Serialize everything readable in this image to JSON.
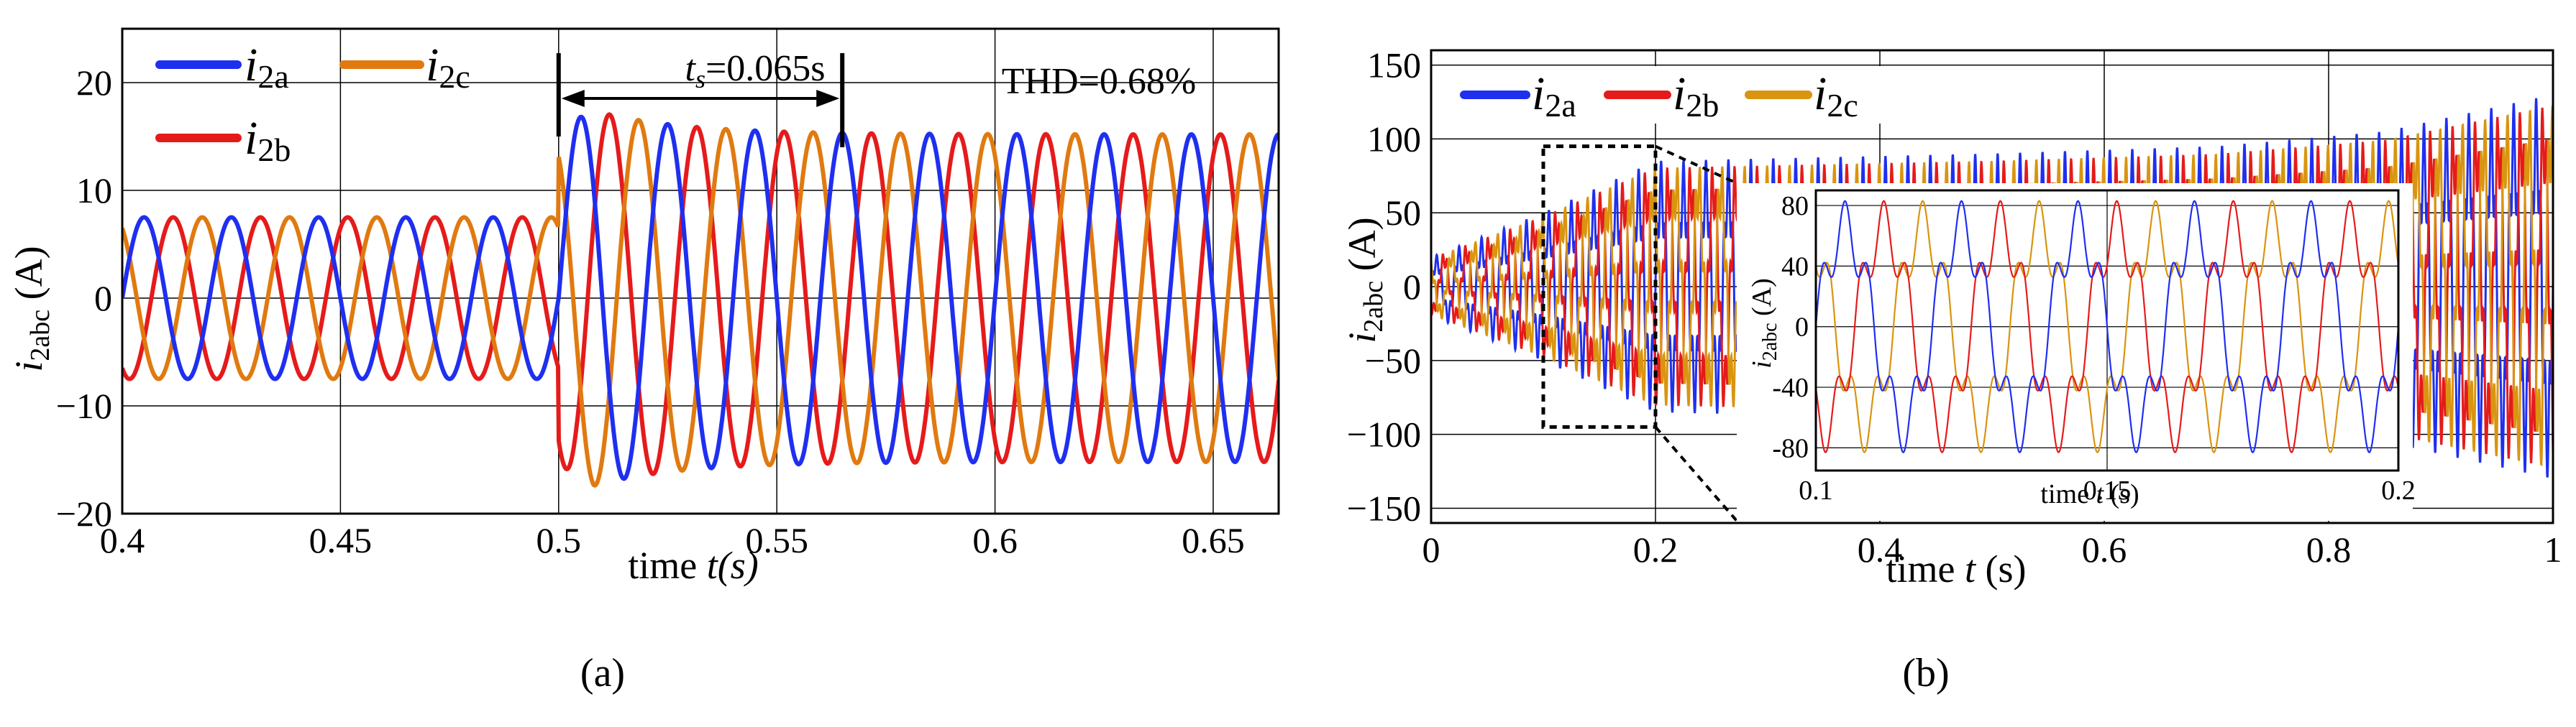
{
  "chart_data": [
    {
      "type": "line",
      "panel_label": "(a)",
      "xlabel": {
        "prefix": "time ",
        "var": "t",
        "unit": "(s)"
      },
      "ylabel": {
        "var": "i",
        "sub": "2abc",
        "unit": " (A)"
      },
      "xlim": [
        0.4,
        0.665
      ],
      "ylim": [
        -20,
        25
      ],
      "xticks": [
        0.4,
        0.45,
        0.5,
        0.55,
        0.6,
        0.65
      ],
      "xtick_labels": [
        "0.4",
        "0.45",
        "0.5",
        "0.55",
        "0.6",
        "0.65"
      ],
      "yticks": [
        -20,
        -10,
        0,
        10,
        20
      ],
      "ytick_labels": [
        "−20",
        "−10",
        "0",
        "10",
        "20"
      ],
      "grid": true,
      "legend_position": "top-left",
      "colors": {
        "i2a": "#1f2ff0",
        "i2b": "#e51b1b",
        "i2c": "#e07a10"
      },
      "series": [
        {
          "name": "i2a",
          "label_var": "i",
          "label_sub": "2a",
          "phase_deg": 0,
          "before": {
            "t_end": 0.5,
            "amplitude": 7.5
          },
          "after": {
            "amplitude": 15.2,
            "peak_overshoot": 18.5
          }
        },
        {
          "name": "i2b",
          "label_var": "i",
          "label_sub": "2b",
          "phase_deg": -120,
          "before": {
            "t_end": 0.5,
            "amplitude": 7.5
          },
          "after": {
            "amplitude": 15.2,
            "peak_overshoot": 18.5
          }
        },
        {
          "name": "i2c",
          "label_var": "i",
          "label_sub": "2c",
          "phase_deg": 120,
          "before": {
            "t_end": 0.5,
            "amplitude": 7.5
          },
          "after": {
            "amplitude": 15.2,
            "peak_overshoot": 18.5
          }
        }
      ],
      "frequency_hz": 50,
      "settling": {
        "t_start": 0.5,
        "t_end": 0.565,
        "var": "t",
        "sub": "s",
        "text": "=0.065s"
      },
      "thd_text": "THD=0.68%"
    },
    {
      "type": "line",
      "panel_label": "(b)",
      "xlabel": {
        "prefix": "time ",
        "var": "t",
        "unit": " (s)"
      },
      "ylabel": {
        "var": "i",
        "sub": "2abc",
        "unit": " (A)"
      },
      "xlim": [
        0,
        1
      ],
      "ylim": [
        -160,
        160
      ],
      "xticks": [
        0,
        0.2,
        0.4,
        0.6,
        0.8,
        1
      ],
      "xtick_labels": [
        "0",
        "0.2",
        "0.4",
        "0.6",
        "0.8",
        "1"
      ],
      "yticks": [
        -150,
        -100,
        -50,
        0,
        50,
        100,
        150
      ],
      "ytick_labels": [
        "−150",
        "−100",
        "−50",
        "0",
        "50",
        "100",
        "150"
      ],
      "grid": true,
      "legend_position": "top-left",
      "colors": {
        "i2a": "#1f2ff0",
        "i2b": "#e51b1b",
        "i2c": "#d99410"
      },
      "series": [
        {
          "name": "i2a",
          "label_var": "i",
          "label_sub": "2a",
          "phase_deg": 0
        },
        {
          "name": "i2b",
          "label_var": "i",
          "label_sub": "2b",
          "phase_deg": -120
        },
        {
          "name": "i2c",
          "label_var": "i",
          "label_sub": "2c",
          "phase_deg": 120
        }
      ],
      "envelope": [
        {
          "t": 0,
          "amplitude": 20
        },
        {
          "t": 0.1,
          "amplitude": 50
        },
        {
          "t": 0.2,
          "amplitude": 85
        },
        {
          "t": 0.5,
          "amplitude": 90
        },
        {
          "t": 0.7,
          "amplitude": 95
        },
        {
          "t": 0.85,
          "amplitude": 105
        },
        {
          "t": 1.0,
          "amplitude": 130
        }
      ],
      "zoom_box": {
        "t": [
          0.1,
          0.2
        ],
        "i": [
          -95,
          95
        ]
      },
      "inset": {
        "xlim": [
          0.1,
          0.2
        ],
        "ylim": [
          -95,
          90
        ],
        "xticks": [
          0.1,
          0.15,
          0.2
        ],
        "xtick_labels": [
          "0.1",
          "0.15",
          "0.2"
        ],
        "yticks": [
          -80,
          -40,
          0,
          40,
          80
        ],
        "ytick_labels": [
          "-80",
          "-40",
          "0",
          "40",
          "80"
        ],
        "amplitude": 65,
        "harmonic": {
          "order": 5,
          "amplitude": 18
        },
        "xlabel": {
          "prefix": "time ",
          "var": "t",
          "unit": " (s)"
        },
        "ylabel": {
          "var": "i",
          "sub": "2abc",
          "unit": " (A)"
        }
      }
    }
  ]
}
